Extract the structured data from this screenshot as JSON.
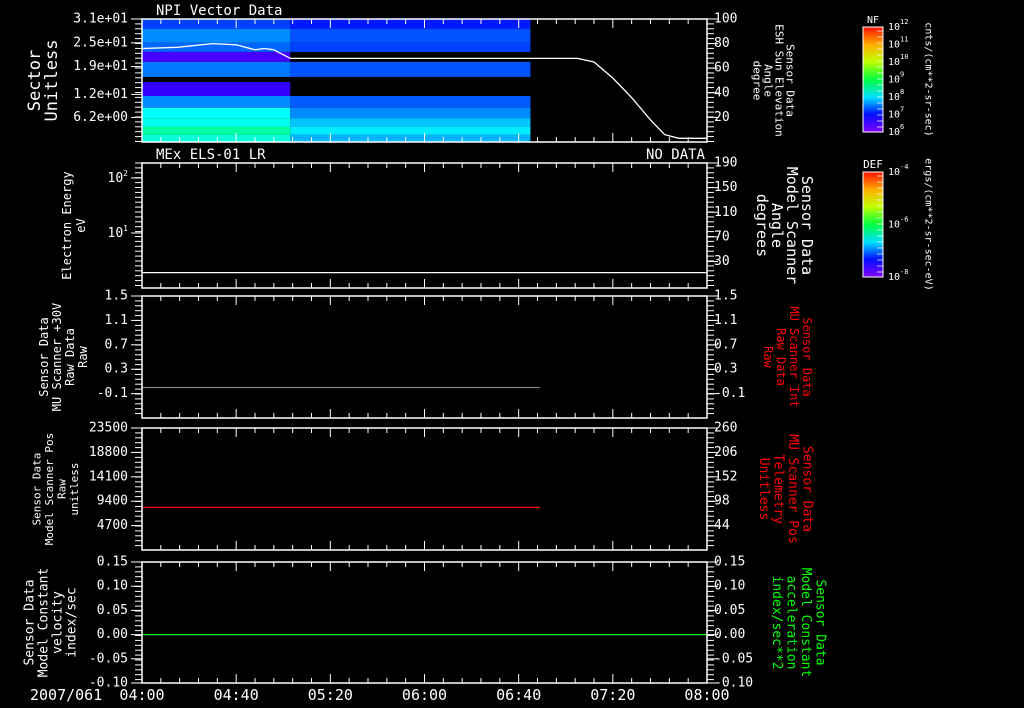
{
  "x_axis": {
    "date": "2007/061",
    "xlim": [
      "04:00",
      "08:00"
    ],
    "ticks": [
      "04:00",
      "04:40",
      "05:20",
      "06:00",
      "06:40",
      "07:20",
      "08:00"
    ]
  },
  "chart_data": [
    {
      "type": "heatmap",
      "title": "NPI Vector Data",
      "ylabel": [
        "Sector",
        "Unitless"
      ],
      "ylim": [
        0,
        31
      ],
      "yticks": [
        {
          "label": "3.1e+01",
          "value": 31
        },
        {
          "label": "2.5e+01",
          "value": 25
        },
        {
          "label": "1.9e+01",
          "value": 19
        },
        {
          "label": "1.2e+01",
          "value": 12
        },
        {
          "label": "6.2e+00",
          "value": 6.2
        }
      ],
      "y2label": [
        "Sensor Data",
        "ESH Sun Elevation",
        "Angle",
        "degree"
      ],
      "y2lim": [
        0,
        100
      ],
      "y2ticks": [
        {
          "label": "100",
          "value": 100
        },
        {
          "label": "80",
          "value": 80
        },
        {
          "label": "60",
          "value": 60
        },
        {
          "label": "40",
          "value": 40
        },
        {
          "label": "20",
          "value": 20
        }
      ],
      "heatmap": {
        "time_edges": [
          "04:00",
          "05:03",
          "06:45"
        ],
        "value_scale": "log10 NF",
        "bins": [
          {
            "range": [
              28.5,
              31
            ],
            "values": [
              7.0,
              6.8
            ]
          },
          {
            "range": [
              25,
              28.5
            ],
            "values": [
              7.4,
              7.1
            ]
          },
          {
            "range": [
              22.7,
              25
            ],
            "values": [
              7.2,
              7.0
            ]
          },
          {
            "range": [
              20.2,
              22.7
            ],
            "values": [
              6.3,
              null
            ]
          },
          {
            "range": [
              16.4,
              20.2
            ],
            "values": [
              7.3,
              7.1
            ]
          },
          {
            "range": [
              15.1,
              16.4
            ],
            "values": [
              null,
              null
            ]
          },
          {
            "range": [
              11.6,
              15.1
            ],
            "values": [
              6.4,
              null
            ]
          },
          {
            "range": [
              8.6,
              11.6
            ],
            "values": [
              7.4,
              7.15
            ]
          },
          {
            "range": [
              6,
              8.6
            ],
            "values": [
              8.0,
              7.4
            ]
          },
          {
            "range": [
              3.8,
              6
            ],
            "values": [
              8.1,
              7.7
            ]
          },
          {
            "range": [
              1.8,
              3.8
            ],
            "values": [
              8.5,
              7.9
            ]
          },
          {
            "range": [
              0,
              1.8
            ],
            "values": [
              8.2,
              7.6
            ]
          }
        ]
      },
      "series": [
        {
          "name": "ESH Sun Elevation Angle",
          "axis": "right",
          "color": "#ffffff",
          "points": [
            [
              "04:00",
              76
            ],
            [
              "04:15",
              77
            ],
            [
              "04:30",
              80
            ],
            [
              "04:40",
              79
            ],
            [
              "04:48",
              75
            ],
            [
              "04:52",
              76
            ],
            [
              "04:56",
              75
            ],
            [
              "05:03",
              68
            ],
            [
              "07:05",
              68
            ],
            [
              "07:12",
              65
            ],
            [
              "07:20",
              52
            ],
            [
              "07:28",
              36
            ],
            [
              "07:36",
              18
            ],
            [
              "07:42",
              6
            ],
            [
              "07:48",
              3
            ],
            [
              "08:00",
              3
            ]
          ]
        }
      ],
      "colorbar": {
        "label": "NF",
        "units": "cnts/(cm**2-sr-sec)",
        "range_log10": [
          6,
          12
        ],
        "ticks": [
          {
            "base": "10",
            "exp": "12"
          },
          {
            "base": "10",
            "exp": "11"
          },
          {
            "base": "10",
            "exp": "10"
          },
          {
            "base": "10",
            "exp": "9"
          },
          {
            "base": "10",
            "exp": "8"
          },
          {
            "base": "10",
            "exp": "7"
          },
          {
            "base": "10",
            "exp": "6"
          }
        ]
      }
    },
    {
      "type": "line",
      "title": "MEx ELS-01 LR",
      "status": "NO DATA",
      "ylabel": [
        "Electron Energy",
        "eV"
      ],
      "ylog": true,
      "ylim": [
        1,
        187
      ],
      "yticks": [
        {
          "base": "10",
          "exp": "2",
          "value": 100
        },
        {
          "base": "10",
          "exp": "1",
          "value": 10
        }
      ],
      "y2label": [
        "Sensor Data",
        "Model Scanner",
        "Angle",
        "degrees"
      ],
      "y2lim": [
        -13,
        190
      ],
      "y2ticks": [
        {
          "label": "190",
          "value": 190
        },
        {
          "label": "150",
          "value": 150
        },
        {
          "label": "110",
          "value": 110
        },
        {
          "label": "70",
          "value": 70
        },
        {
          "label": "30",
          "value": 30
        }
      ],
      "series": [
        {
          "name": "Model Scanner Angle",
          "axis": "right",
          "color": "#ffffff",
          "points": [
            [
              "04:00",
              12
            ],
            [
              "08:00",
              12
            ]
          ]
        }
      ],
      "colorbar": {
        "label": "DEF",
        "units": "ergs/(cm**2-sr-sec-eV)",
        "range_log10": [
          -8,
          -4
        ],
        "ticks": [
          {
            "base": "10",
            "exp": "-4"
          },
          {
            "base": "10",
            "exp": "-6"
          },
          {
            "base": "10",
            "exp": "-8"
          }
        ]
      }
    },
    {
      "type": "line",
      "ylabel": [
        "Sensor Data",
        "MU Scanner +30V",
        "Raw Data",
        "Raw"
      ],
      "ylim": [
        -0.5,
        1.5
      ],
      "yticks": [
        {
          "label": "1.5",
          "value": 1.5
        },
        {
          "label": "1.1",
          "value": 1.1
        },
        {
          "label": "0.7",
          "value": 0.7
        },
        {
          "label": "0.3",
          "value": 0.3
        },
        {
          "label": "-0.1",
          "value": -0.1
        }
      ],
      "y2label": [
        "Sensor Data",
        "MU Scanner Int",
        "Raw Data",
        "Raw"
      ],
      "y2label_color": "#ff0000",
      "y2lim": [
        -0.5,
        1.5
      ],
      "y2ticks": [
        {
          "label": "1.5",
          "value": 1.5
        },
        {
          "label": "1.1",
          "value": 1.1
        },
        {
          "label": "0.7",
          "value": 0.7
        },
        {
          "label": "0.3",
          "value": 0.3
        },
        {
          "label": "-0.1",
          "value": -0.1
        }
      ],
      "series": [
        {
          "name": "MU Scanner +30V Raw",
          "axis": "left",
          "color": "#808080",
          "points": [
            [
              "04:00",
              0.0
            ],
            [
              "06:49",
              0.0
            ]
          ]
        }
      ]
    },
    {
      "type": "line",
      "ylabel": [
        "Sensor Data",
        "Model Scanner Pos",
        "Raw",
        "unitless"
      ],
      "ylim": [
        0,
        23500
      ],
      "yticks": [
        {
          "label": "23500",
          "value": 23500
        },
        {
          "label": "18800",
          "value": 18800
        },
        {
          "label": "14100",
          "value": 14100
        },
        {
          "label": "9400",
          "value": 9400
        },
        {
          "label": "4700",
          "value": 4700
        }
      ],
      "y2label": [
        "Sensor Data",
        "MU Scanner Pos",
        "Telemetry",
        "Unitless"
      ],
      "y2label_color": "#ff0000",
      "y2lim": [
        -10,
        260
      ],
      "y2ticks": [
        {
          "label": "260",
          "value": 260
        },
        {
          "label": "206",
          "value": 206
        },
        {
          "label": "152",
          "value": 152
        },
        {
          "label": "98",
          "value": 98
        },
        {
          "label": "44",
          "value": 44
        }
      ],
      "series": [
        {
          "name": "MU Scanner Pos Telemetry",
          "axis": "left",
          "color": "#ff0000",
          "points": [
            [
              "04:00",
              8200
            ],
            [
              "06:49",
              8200
            ]
          ]
        }
      ]
    },
    {
      "type": "line",
      "ylabel": [
        "Sensor Data",
        "Model Constant",
        "velocity",
        "index/sec"
      ],
      "ylim": [
        -0.1,
        0.15
      ],
      "yticks": [
        {
          "label": "0.15",
          "value": 0.15
        },
        {
          "label": "0.10",
          "value": 0.1
        },
        {
          "label": "0.05",
          "value": 0.05
        },
        {
          "label": "0.00",
          "value": 0.0
        },
        {
          "label": "-0.05",
          "value": -0.05
        },
        {
          "label": "-0.10",
          "value": -0.1
        }
      ],
      "y2label": [
        "Sensor Data",
        "Model Constant",
        "acceleration",
        "index/sec**2"
      ],
      "y2label_color": "#00ff00",
      "y2lim": [
        -0.1,
        0.15
      ],
      "y2ticks": [
        {
          "label": "0.15",
          "value": 0.15
        },
        {
          "label": "0.10",
          "value": 0.1
        },
        {
          "label": "0.05",
          "value": 0.05
        },
        {
          "label": "0.00",
          "value": 0.0
        },
        {
          "label": "-0.05",
          "value": -0.05
        },
        {
          "label": "-0.10",
          "value": -0.1
        }
      ],
      "series": [
        {
          "name": "Model Constant acceleration",
          "axis": "right",
          "color": "#00ff00",
          "points": [
            [
              "04:00",
              0.0
            ],
            [
              "08:00",
              0.0
            ]
          ]
        }
      ]
    }
  ]
}
